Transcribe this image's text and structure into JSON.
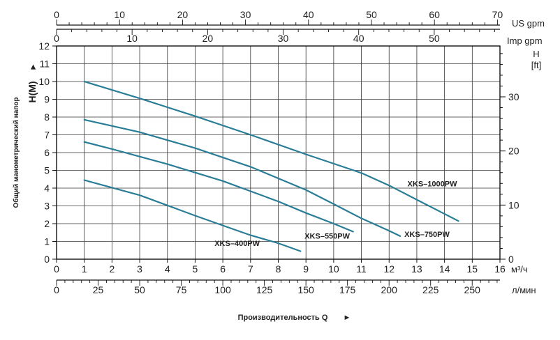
{
  "chart_data": {
    "type": "line",
    "x_m3h": {
      "ticks": [
        0,
        1,
        2,
        3,
        4,
        5,
        6,
        7,
        8,
        9,
        10,
        11,
        12,
        13,
        14,
        15,
        16
      ],
      "range": [
        0,
        16
      ],
      "unit": "м³/ч"
    },
    "x_lmin": {
      "ticks": [
        0,
        25,
        50,
        75,
        100,
        125,
        150,
        175,
        200,
        225,
        250
      ],
      "range": [
        0,
        266.7
      ],
      "unit": "л/мин"
    },
    "x_usgpm": {
      "ticks": [
        0,
        10,
        20,
        30,
        40,
        50,
        60,
        70
      ],
      "range": [
        0,
        70.4
      ],
      "unit": "US gpm"
    },
    "x_impgpm": {
      "ticks": [
        0,
        10,
        20,
        30,
        40,
        50
      ],
      "range": [
        0,
        58.7
      ],
      "unit": "Imp gpm"
    },
    "y_m": {
      "ticks": [
        0,
        1,
        2,
        3,
        4,
        5,
        6,
        7,
        8,
        9,
        10,
        11,
        12
      ],
      "range": [
        0,
        12
      ],
      "label": "Общий манометрический напор",
      "unit_label": "H(M)"
    },
    "y_ft": {
      "ticks": [
        0,
        10,
        20,
        30
      ],
      "range": [
        0,
        39.4
      ],
      "unit_top": "H",
      "unit_bottom": "[ft]"
    },
    "xlabel": "Производительность Q",
    "arrow": "►",
    "grid": true,
    "series": [
      {
        "name": "XKS–1000PW",
        "x": [
          1,
          3,
          5,
          7,
          9,
          11,
          12,
          13,
          14,
          14.5
        ],
        "y": [
          10,
          9.05,
          8.05,
          7.0,
          5.9,
          4.85,
          4.15,
          3.35,
          2.55,
          2.15
        ]
      },
      {
        "name": "XKS–750PW",
        "x": [
          1,
          3,
          5,
          7,
          9,
          10,
          11,
          12,
          12.4
        ],
        "y": [
          7.85,
          7.15,
          6.25,
          5.2,
          3.9,
          3.1,
          2.3,
          1.6,
          1.3
        ]
      },
      {
        "name": "XKS–550PW",
        "x": [
          1,
          2,
          4,
          6,
          8,
          9,
          10,
          10.7
        ],
        "y": [
          6.6,
          6.2,
          5.35,
          4.4,
          3.25,
          2.6,
          2.0,
          1.55
        ]
      },
      {
        "name": "XKS–400PW",
        "x": [
          1,
          3,
          5,
          6,
          7,
          8,
          8.8
        ],
        "y": [
          4.45,
          3.6,
          2.45,
          1.9,
          1.35,
          0.9,
          0.45
        ]
      }
    ],
    "color": "#2a7d96"
  }
}
